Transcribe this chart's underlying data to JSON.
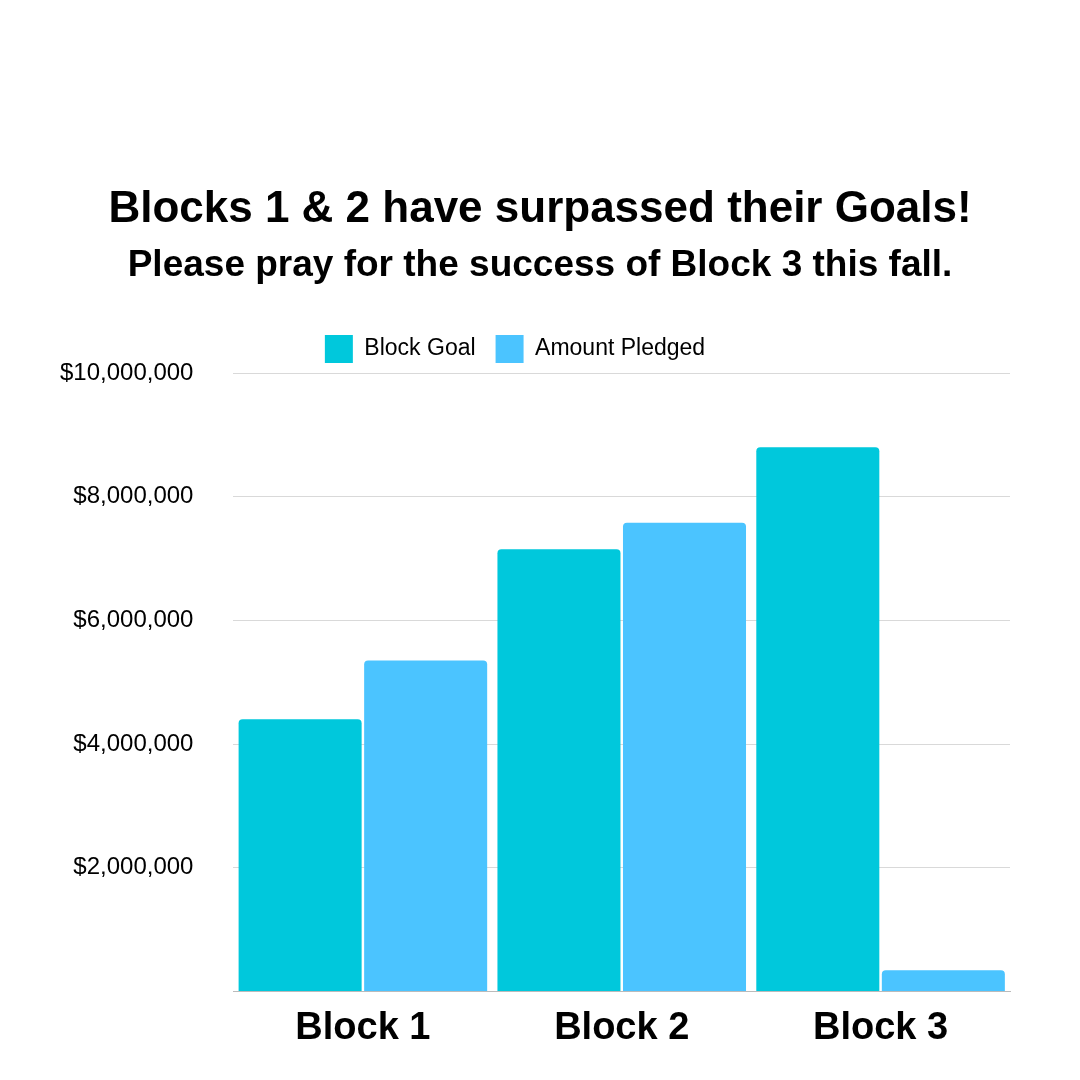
{
  "chart_data": {
    "type": "bar",
    "title": "Blocks 1 & 2 have surpassed  their Goals!",
    "subtitle": "Please pray for the success of Block 3 this fall.",
    "categories": [
      "Block 1",
      "Block 2",
      "Block 3"
    ],
    "series": [
      {
        "name": "Block Goal",
        "color": "#00c8dc",
        "values": [
          4400000,
          7150000,
          8800000
        ]
      },
      {
        "name": "Amount Pledged",
        "color": "#4bc4ff",
        "values": [
          5350000,
          7580000,
          340000
        ]
      }
    ],
    "ylim": [
      0,
      10000000
    ],
    "yticks": [
      {
        "value": 0,
        "label": null
      },
      {
        "value": 2000000,
        "label": "$2,000,000"
      },
      {
        "value": 4000000,
        "label": "$4,000,000"
      },
      {
        "value": 6000000,
        "label": "$6,000,000"
      },
      {
        "value": 8000000,
        "label": "$8,000,000"
      },
      {
        "value": 10000000,
        "label": "$10,000,000"
      }
    ],
    "grid": "y",
    "legend": "top"
  }
}
